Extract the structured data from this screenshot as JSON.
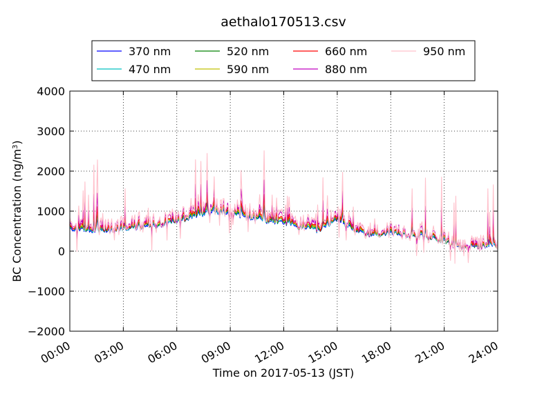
{
  "chart_data": {
    "type": "line",
    "title": "aethalo170513.csv",
    "xlabel": "Time on 2017-05-13 (JST)",
    "ylabel": "BC Concentration (ng/m³)",
    "ylabel_main": "BC Concentration (ng/m",
    "ylabel_sup": "3",
    "ylabel_end": ")",
    "xlim": [
      "00:00",
      "24:00"
    ],
    "ylim": [
      -2000,
      4000
    ],
    "grid": true,
    "legend_position": "top-center",
    "x_ticks": [
      "00:00",
      "03:00",
      "06:00",
      "09:00",
      "12:00",
      "15:00",
      "18:00",
      "21:00",
      "24:00"
    ],
    "y_ticks": [
      "−2000",
      "−1000",
      "0",
      "1000",
      "2000",
      "3000",
      "4000"
    ],
    "x_tick_hours": [
      0,
      3,
      6,
      9,
      12,
      15,
      18,
      21,
      24
    ],
    "y_tick_values": [
      -2000,
      -1000,
      0,
      1000,
      2000,
      3000,
      4000
    ],
    "anchors": {
      "x": [
        "00:00",
        "01:00",
        "02:00",
        "03:00",
        "04:00",
        "05:00",
        "06:00",
        "07:00",
        "08:00",
        "09:00",
        "10:00",
        "11:00",
        "12:00",
        "13:00",
        "14:00",
        "15:00",
        "16:00",
        "17:00",
        "18:00",
        "19:00",
        "20:00",
        "21:00",
        "22:00",
        "23:00",
        "24:00"
      ],
      "baseline_370nm": [
        550,
        500,
        500,
        550,
        600,
        650,
        750,
        850,
        1000,
        950,
        850,
        750,
        700,
        600,
        500,
        800,
        500,
        400,
        450,
        400,
        350,
        250,
        100,
        100,
        150
      ]
    },
    "series": [
      {
        "name": "370 nm",
        "color": "#0000ff",
        "offset": 0,
        "spike": 0.6,
        "noise": 60
      },
      {
        "name": "470 nm",
        "color": "#00bfbf",
        "offset": 20,
        "spike": 0.7,
        "noise": 70
      },
      {
        "name": "520 nm",
        "color": "#008000",
        "offset": 40,
        "spike": 0.8,
        "noise": 80
      },
      {
        "name": "590 nm",
        "color": "#bfbf00",
        "offset": 60,
        "spike": 0.9,
        "noise": 90
      },
      {
        "name": "660 nm",
        "color": "#ff0000",
        "offset": 80,
        "spike": 1.0,
        "noise": 100
      },
      {
        "name": "880 nm",
        "color": "#bf00bf",
        "offset": 130,
        "spike": 1.6,
        "noise": 150
      },
      {
        "name": "950 nm",
        "color": "#ffc0cb",
        "offset": 150,
        "spike": 3.0,
        "noise": 200
      }
    ]
  }
}
